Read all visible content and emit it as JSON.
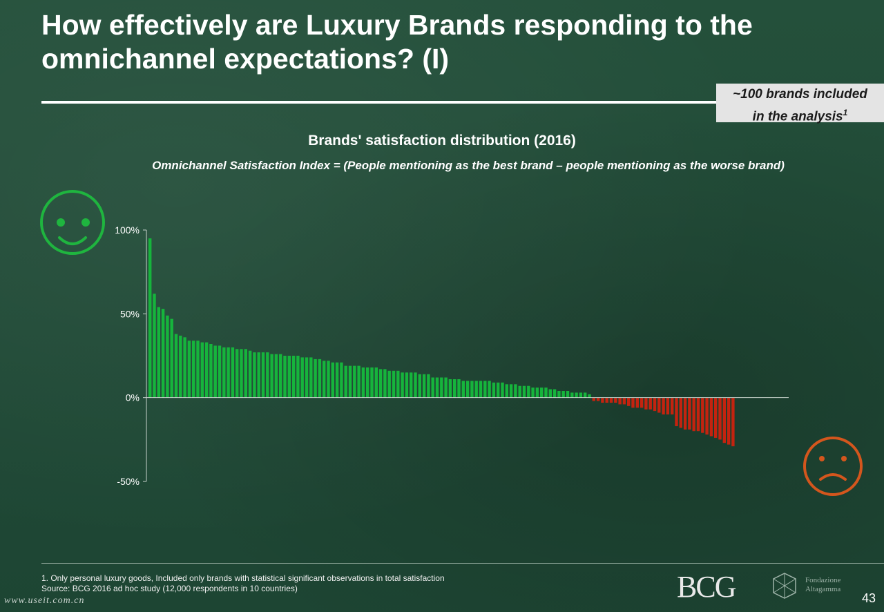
{
  "slide": {
    "title": "How  effectively are Luxury Brands responding to the omnichannel expectations? (I)",
    "note_line1": "~100 brands included",
    "note_line2": "in the analysis",
    "note_sup": "1",
    "footnote_1": "1.  Only personal luxury goods, Included only brands with statistical significant observations in total satisfaction",
    "footnote_2": "Source: BCG 2016 ad hoc study (12,000 respondents in 10 countries)",
    "logo_text": "BCG",
    "partner_logo_line1": "Fondazione",
    "partner_logo_line2": "Altagamma",
    "page_number": "43",
    "watermark": "www.useit.com.cn"
  },
  "colors": {
    "positive_bar": "#16b43c",
    "negative_bar": "#c4230f",
    "happy_face": "#1fb53f",
    "sad_face": "#d4561d"
  },
  "icons": {
    "positive": "smiley-face-icon",
    "negative": "sad-face-icon"
  },
  "chart_data": {
    "type": "bar",
    "title": "Brands' satisfaction distribution (2016)",
    "subtitle": "Omnichannel Satisfaction Index = (People mentioning as the best brand – people mentioning as the worse brand)",
    "ylim": [
      -50,
      100
    ],
    "yticks": [
      {
        "value": 100,
        "label": "100%"
      },
      {
        "value": 50,
        "label": "50%"
      },
      {
        "value": 0,
        "label": "0%"
      },
      {
        "value": -50,
        "label": "-50%"
      }
    ],
    "values": [
      95,
      62,
      54,
      53,
      49,
      47,
      38,
      37,
      36,
      34,
      34,
      34,
      33,
      33,
      32,
      31,
      31,
      30,
      30,
      30,
      29,
      29,
      29,
      28,
      27,
      27,
      27,
      27,
      26,
      26,
      26,
      25,
      25,
      25,
      25,
      24,
      24,
      24,
      23,
      23,
      22,
      22,
      21,
      21,
      21,
      19,
      19,
      19,
      19,
      18,
      18,
      18,
      18,
      17,
      17,
      16,
      16,
      16,
      15,
      15,
      15,
      15,
      14,
      14,
      14,
      12,
      12,
      12,
      12,
      11,
      11,
      11,
      10,
      10,
      10,
      10,
      10,
      10,
      10,
      9,
      9,
      9,
      8,
      8,
      8,
      7,
      7,
      7,
      6,
      6,
      6,
      6,
      5,
      5,
      4,
      4,
      4,
      3,
      3,
      3,
      3,
      2,
      -2,
      -2,
      -3,
      -3,
      -3,
      -3,
      -4,
      -4,
      -5,
      -6,
      -6,
      -6,
      -7,
      -7,
      -8,
      -9,
      -10,
      -10,
      -10,
      -17,
      -18,
      -19,
      -19,
      -20,
      -20,
      -21,
      -22,
      -23,
      -24,
      -25,
      -27,
      -28,
      -29
    ]
  }
}
